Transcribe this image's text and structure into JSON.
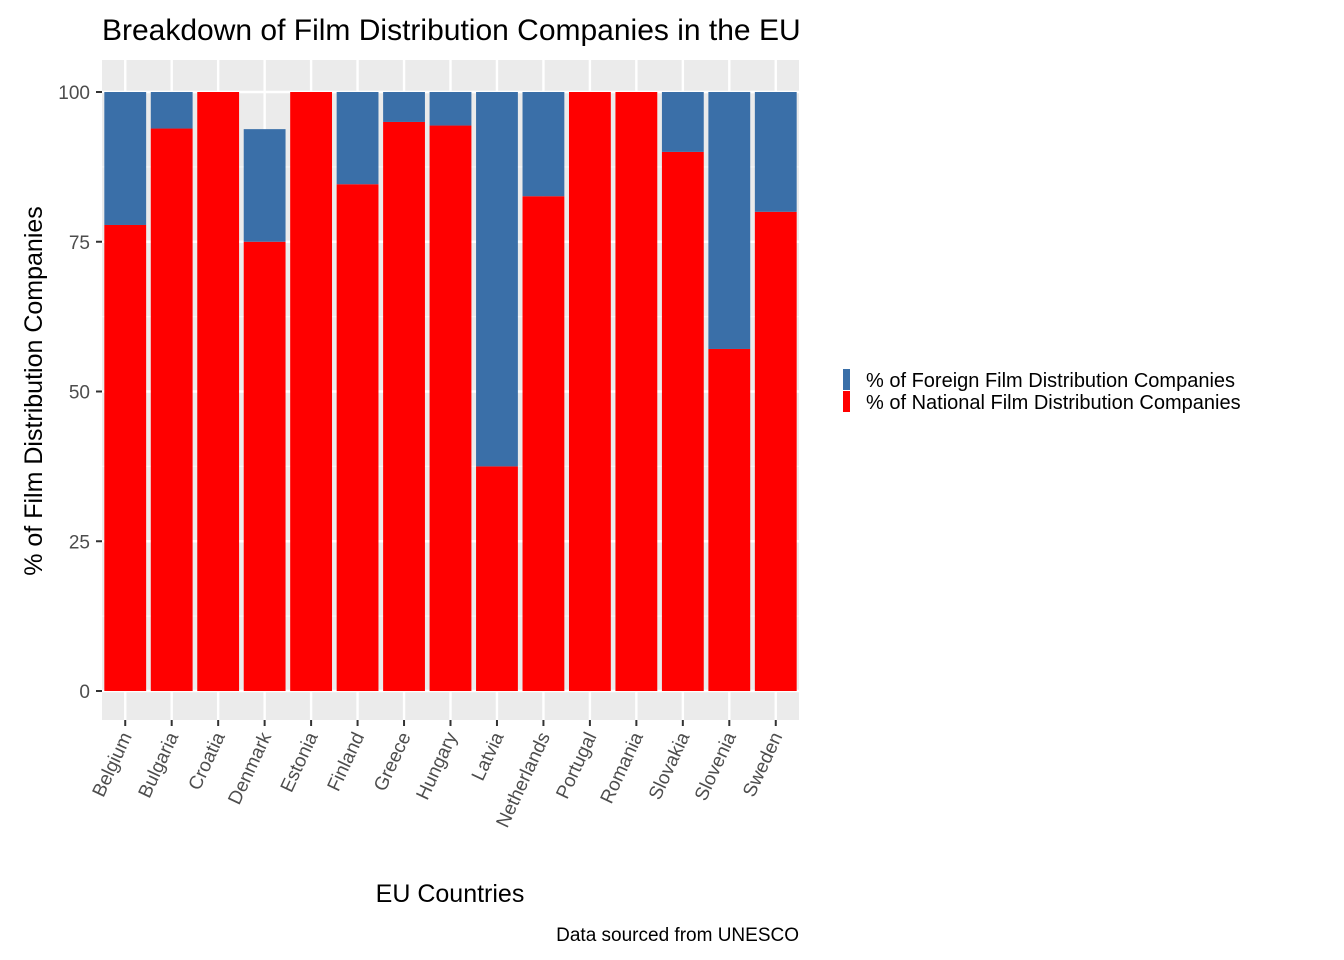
{
  "chart_data": {
    "type": "bar",
    "stacked": true,
    "title": "Breakdown of Film Distribution Companies in the EU",
    "xlabel": "EU Countries",
    "ylabel": "% of Film Distribution Companies",
    "caption": "Data sourced from UNESCO",
    "ylim": [
      0,
      100
    ],
    "y_ticks": [
      "0",
      "25",
      "50",
      "75",
      "100"
    ],
    "grid": true,
    "legend_position": "right",
    "categories": [
      "Belgium",
      "Bulgaria",
      "Croatia",
      "Denmark",
      "Estonia",
      "Finland",
      "Greece",
      "Hungary",
      "Latvia",
      "Netherlands",
      "Portugal",
      "Romania",
      "Slovakia",
      "Slovenia",
      "Sweden"
    ],
    "series": [
      {
        "name": "% of National Film Distribution Companies",
        "color": "#FF0000",
        "values": [
          77.8,
          93.9,
          100,
          75,
          100,
          84.6,
          95,
          94.4,
          37.5,
          82.6,
          100,
          100,
          90,
          57.1,
          80
        ]
      },
      {
        "name": "% of Foreign Film Distribution Companies",
        "color": "#3A6FA8",
        "values": [
          22.2,
          6.1,
          0,
          18.8,
          0,
          15.4,
          5,
          5.6,
          62.5,
          17.4,
          0,
          0,
          10,
          42.9,
          20
        ]
      }
    ],
    "legend_order": [
      1,
      0
    ]
  }
}
